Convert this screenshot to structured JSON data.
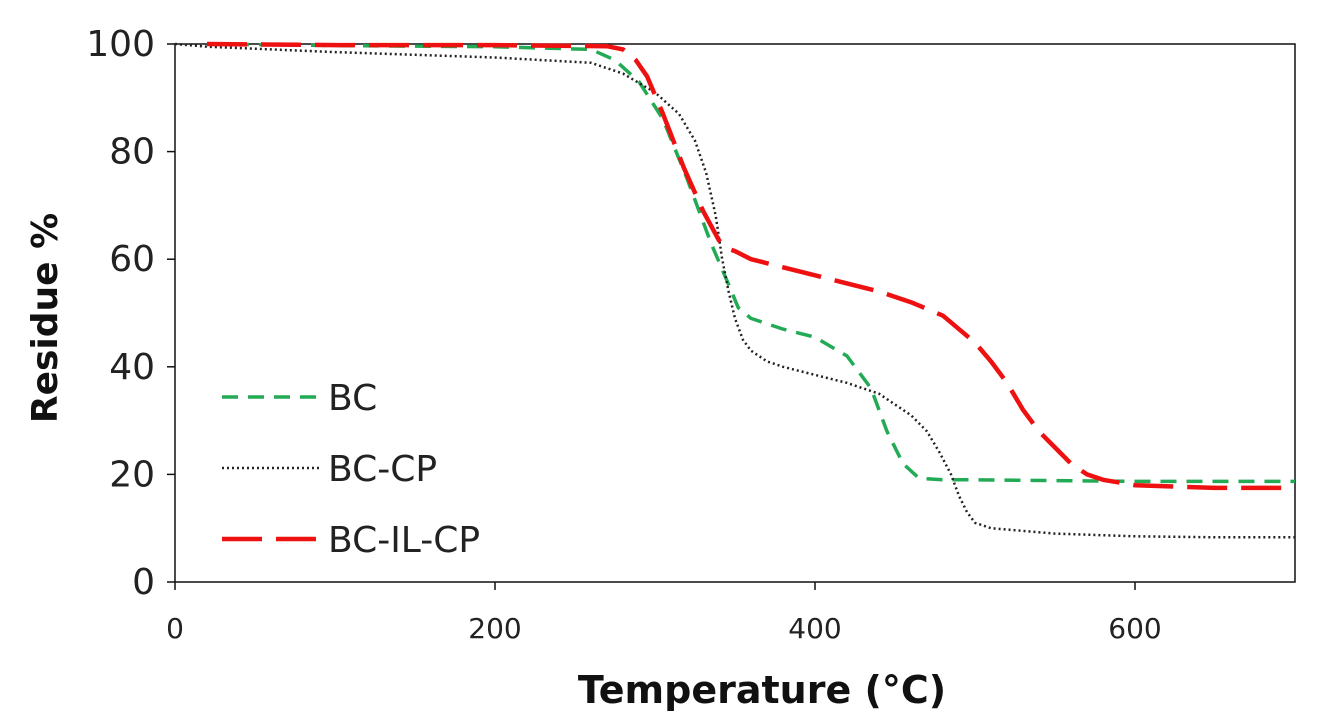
{
  "chart_data": {
    "type": "line",
    "title": "",
    "xlabel": "Temperature (°C)",
    "ylabel": "Residue %",
    "xlim": [
      0,
      700
    ],
    "ylim": [
      0,
      100
    ],
    "xticks": [
      0,
      200,
      400,
      600
    ],
    "yticks": [
      0,
      20,
      40,
      60,
      80,
      100
    ],
    "grid": false,
    "legend_position": "bottom-left",
    "series": [
      {
        "name": "BC",
        "color": "#22aa55",
        "style": "short-dash",
        "x": [
          20,
          100,
          200,
          260,
          275,
          290,
          305,
          320,
          335,
          345,
          352,
          360,
          380,
          400,
          420,
          435,
          445,
          455,
          465,
          480,
          500,
          600,
          700
        ],
        "y": [
          100,
          99.7,
          99.5,
          99,
          97,
          93,
          86,
          75,
          63,
          56,
          51,
          49,
          47,
          45.5,
          42,
          36,
          28,
          22,
          19.3,
          19,
          19,
          18.7,
          18.7
        ]
      },
      {
        "name": "BC-CP",
        "color": "#222222",
        "style": "dotted",
        "x": [
          0,
          20,
          100,
          200,
          260,
          280,
          300,
          315,
          325,
          332,
          338,
          342,
          346,
          350,
          355,
          360,
          370,
          380,
          400,
          420,
          440,
          450,
          460,
          470,
          478,
          485,
          490,
          495,
          500,
          510,
          550,
          600,
          650,
          700
        ],
        "y": [
          100,
          99.5,
          98.5,
          97.5,
          96.5,
          94.5,
          91,
          87,
          82,
          76,
          68,
          60,
          54,
          49,
          45,
          43,
          41,
          40,
          38.5,
          37,
          35,
          33,
          31,
          28,
          24,
          20,
          16,
          13,
          11,
          10,
          9,
          8.5,
          8.3,
          8.3
        ]
      },
      {
        "name": "BC-IL-CP",
        "color": "#ee1111",
        "style": "long-dash",
        "x": [
          20,
          100,
          200,
          270,
          280,
          288,
          295,
          305,
          318,
          330,
          340,
          345,
          350,
          360,
          380,
          400,
          420,
          440,
          460,
          480,
          500,
          510,
          520,
          530,
          540,
          550,
          560,
          570,
          580,
          600,
          650,
          700
        ],
        "y": [
          100,
          99.8,
          99.8,
          99.6,
          99,
          97,
          94,
          87,
          77,
          69,
          63.5,
          62,
          61.5,
          60,
          58.5,
          57,
          55.5,
          54,
          52,
          49.5,
          44.5,
          41,
          37,
          32,
          28,
          25,
          22,
          20,
          19,
          18,
          17.5,
          17.5
        ]
      }
    ]
  }
}
